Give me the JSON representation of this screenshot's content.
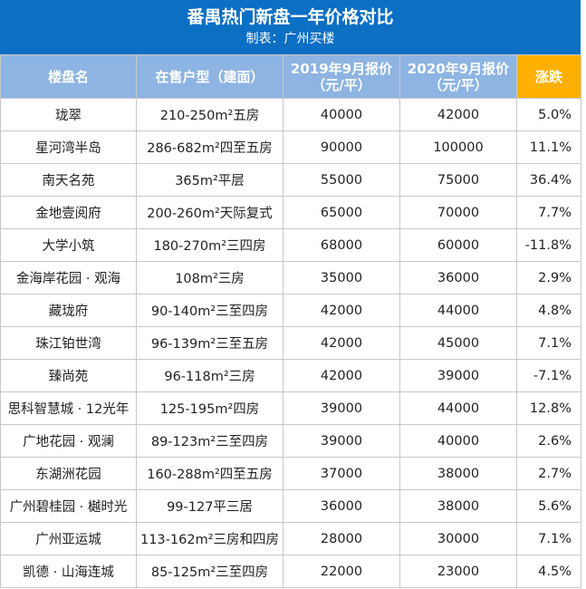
{
  "header": {
    "title": "番禺热门新盘一年价格对比",
    "subtitle": "制表：广州买楼"
  },
  "table": {
    "columns": [
      [
        "楼盘名"
      ],
      [
        "在售户型（建面）"
      ],
      [
        "2019年9月报价",
        "（元/平）"
      ],
      [
        "2020年9月报价",
        "（元/平）"
      ],
      [
        "涨跌"
      ]
    ],
    "rows": [
      [
        "珑翠",
        "210-250m²五房",
        "40000",
        "42000",
        "5.0%"
      ],
      [
        "星河湾半岛",
        "286-682m²四至五房",
        "90000",
        "100000",
        "11.1%"
      ],
      [
        "南天名苑",
        "365m²平层",
        "55000",
        "75000",
        "36.4%"
      ],
      [
        "金地壹阅府",
        "200-260m²天际复式",
        "65000",
        "70000",
        "7.7%"
      ],
      [
        "大学小筑",
        "180-270m²三四房",
        "68000",
        "60000",
        "-11.8%"
      ],
      [
        "金海岸花园 · 观海",
        "108m²三房",
        "35000",
        "36000",
        "2.9%"
      ],
      [
        "藏珑府",
        "90-140m²三至四房",
        "42000",
        "44000",
        "4.8%"
      ],
      [
        "珠江铂世湾",
        "96-139m²三至五房",
        "42000",
        "45000",
        "7.1%"
      ],
      [
        "臻尚苑",
        "96-118m²三房",
        "42000",
        "39000",
        "-7.1%"
      ],
      [
        "思科智慧城 · 12光年",
        "125-195m²四房",
        "39000",
        "44000",
        "12.8%"
      ],
      [
        "广地花园 · 观澜",
        "89-123m²三至四房",
        "39000",
        "40000",
        "2.6%"
      ],
      [
        "东湖洲花园",
        "160-288m²四至五房",
        "37000",
        "38000",
        "2.7%"
      ],
      [
        "广州碧桂园 · 樾时光",
        "99-127平三居",
        "36000",
        "38000",
        "5.6%"
      ],
      [
        "广州亚运城",
        "113-162m²三房和四房",
        "28000",
        "30000",
        "7.1%"
      ],
      [
        "凯德 · 山海连城",
        "85-125m²三至四房",
        "22000",
        "23000",
        "4.5%"
      ]
    ]
  }
}
